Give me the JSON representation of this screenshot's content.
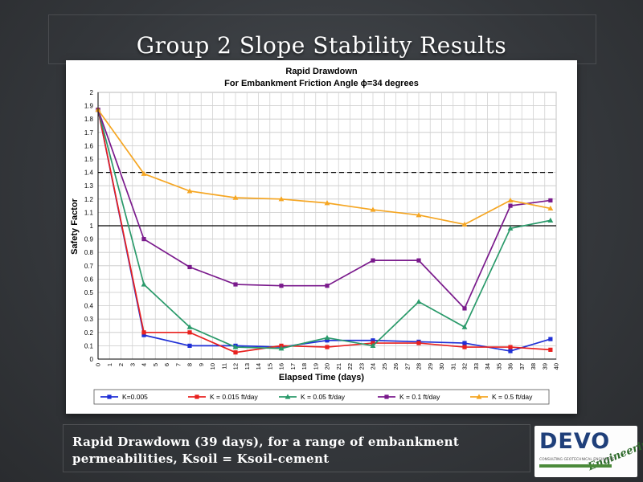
{
  "slide": {
    "title": "Group 2 Slope Stability Results",
    "caption": "Rapid Drawdown (39 days), for a range of embankment permeabilities, Ksoil = Ksoil-cement"
  },
  "logo": {
    "name": "DEVO",
    "tagline": "Engineering",
    "subtext": "CONSULTING GEOTECHNICAL ENGINEERS"
  },
  "colors": {
    "k0005": "#1f2fd6",
    "k0015": "#e8211f",
    "k005": "#2a9a6a",
    "k01": "#7a1a8c",
    "k05": "#f5a623"
  },
  "chart_data": {
    "type": "line",
    "title": "Rapid Drawdown",
    "subtitle": "For Embankment Friction Angle ϕ=34 degrees",
    "xlabel": "Elapsed Time (days)",
    "ylabel": "Safety Factor",
    "xlim": [
      0,
      40
    ],
    "ylim": [
      0,
      2
    ],
    "x_ticks": [
      0,
      1,
      2,
      3,
      4,
      5,
      6,
      7,
      8,
      9,
      10,
      11,
      12,
      13,
      14,
      15,
      16,
      17,
      18,
      19,
      20,
      21,
      22,
      23,
      24,
      25,
      26,
      27,
      28,
      29,
      30,
      31,
      32,
      33,
      34,
      35,
      36,
      37,
      38,
      39,
      40
    ],
    "y_ticks": [
      "0",
      "0.1",
      "0.2",
      "0.3",
      "0.4",
      "0.5",
      "0.6",
      "0.7",
      "0.8",
      "0.9",
      "1",
      "1.1",
      "1.2",
      "1.3",
      "1.4",
      "1.5",
      "1.6",
      "1.7",
      "1.8",
      "1.9",
      "2"
    ],
    "grid": true,
    "legend_position": "bottom",
    "reference_lines": [
      {
        "y": 1.0,
        "style": "solid"
      },
      {
        "y": 1.4,
        "style": "dashed"
      }
    ],
    "series": [
      {
        "name": "K=0.005",
        "marker": "square",
        "color": "#1f2fd6",
        "x": [
          0,
          4,
          8,
          12,
          16,
          20,
          24,
          28,
          32,
          36,
          39.5
        ],
        "y": [
          1.87,
          0.18,
          0.1,
          0.1,
          0.09,
          0.14,
          0.14,
          0.13,
          0.12,
          0.06,
          0.15
        ]
      },
      {
        "name": "K = 0.015 ft/day",
        "marker": "square",
        "color": "#e8211f",
        "x": [
          0,
          4,
          8,
          12,
          16,
          20,
          24,
          28,
          32,
          36,
          39.5
        ],
        "y": [
          1.87,
          0.2,
          0.2,
          0.05,
          0.1,
          0.09,
          0.12,
          0.12,
          0.09,
          0.09,
          0.07
        ]
      },
      {
        "name": "K = 0.05 ft/day",
        "marker": "triangle",
        "color": "#2a9a6a",
        "x": [
          0,
          4,
          8,
          12,
          16,
          20,
          24,
          28,
          32,
          36,
          39.5
        ],
        "y": [
          1.87,
          0.56,
          0.24,
          0.09,
          0.08,
          0.16,
          0.1,
          0.43,
          0.24,
          0.98,
          1.04
        ]
      },
      {
        "name": "K = 0.1 ft/day",
        "marker": "square",
        "color": "#7a1a8c",
        "x": [
          0,
          4,
          8,
          12,
          16,
          20,
          24,
          28,
          32,
          36,
          39.5
        ],
        "y": [
          1.87,
          0.9,
          0.69,
          0.56,
          0.55,
          0.55,
          0.74,
          0.74,
          0.38,
          1.15,
          1.19
        ]
      },
      {
        "name": "K = 0.5 ft/day",
        "marker": "triangle",
        "color": "#f5a623",
        "x": [
          0,
          4,
          8,
          12,
          16,
          20,
          24,
          28,
          32,
          36,
          39.5
        ],
        "y": [
          1.87,
          1.39,
          1.26,
          1.21,
          1.2,
          1.17,
          1.12,
          1.08,
          1.01,
          1.19,
          1.13
        ]
      }
    ]
  }
}
